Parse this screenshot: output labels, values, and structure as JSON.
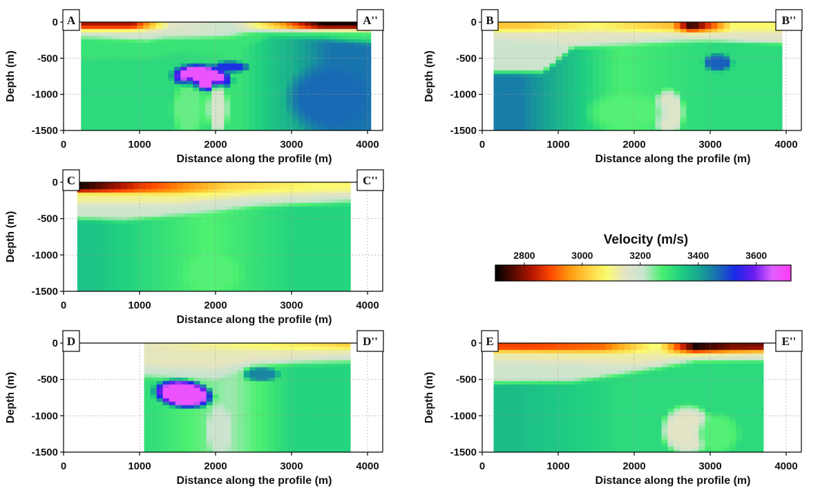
{
  "chart_data": {
    "type": "heatmap",
    "colorbar": {
      "title": "Velocity (m/s)",
      "range": [
        2700,
        3720
      ],
      "ticks": [
        2800,
        3000,
        3200,
        3400,
        3600
      ],
      "colors": [
        "#000000",
        "#5a0c00",
        "#b81800",
        "#ff4a00",
        "#ff9a10",
        "#ffd040",
        "#fbfb70",
        "#e4e4c4",
        "#c8e4d0",
        "#4cf070",
        "#20d080",
        "#18a890",
        "#1870b0",
        "#1c28e8",
        "#6a1cf0",
        "#e060ff",
        "#ff3cf8"
      ]
    },
    "panels": [
      {
        "id": "A",
        "start_label": "A",
        "end_label": "A''",
        "xlabel": "Distance along the profile (m)",
        "ylabel": "Depth (m)",
        "xlim": [
          0,
          4200
        ],
        "ylim": [
          -1500,
          0
        ],
        "xticks": [
          0,
          1000,
          2000,
          3000,
          4000
        ],
        "yticks": [
          0,
          -500,
          -1000,
          -1500
        ],
        "data_x_range": [
          230,
          4050
        ],
        "surface": [
          [
            0,
            0
          ],
          [
            4200,
            0
          ]
        ],
        "layers": [
          {
            "depth": [
              [
                0,
                -100
              ],
              [
                4200,
                -100
              ]
            ],
            "v": 2950,
            "vmod": [
              [
                900,
                2820
              ],
              [
                1400,
                3150
              ],
              [
                2200,
                3200
              ],
              [
                2900,
                2950
              ],
              [
                3400,
                2720
              ]
            ]
          },
          {
            "depth": [
              [
                0,
                -200
              ],
              [
                500,
                -220
              ],
              [
                1100,
                -250
              ],
              [
                1300,
                -220
              ],
              [
                2200,
                -200
              ],
              [
                2600,
                -120
              ],
              [
                3200,
                -130
              ],
              [
                4200,
                -180
              ]
            ],
            "v": 3140,
            "vmod": [
              [
                1700,
                3180
              ],
              [
                3400,
                3260
              ]
            ]
          },
          {
            "depth": [
              [
                0,
                -550
              ],
              [
                700,
                -500
              ],
              [
                1100,
                -530
              ],
              [
                1500,
                -420
              ],
              [
                2200,
                -450
              ],
              [
                2700,
                -200
              ],
              [
                3400,
                -230
              ],
              [
                4200,
                -300
              ]
            ],
            "v": 3220,
            "vmod": [
              [
                2800,
                3300
              ]
            ]
          },
          {
            "depth": [
              [
                0,
                -1500
              ],
              [
                4200,
                -1500
              ]
            ],
            "v": 3360,
            "vmod": [
              [
                1500,
                3320
              ],
              [
                2300,
                3300
              ],
              [
                3100,
                3400
              ],
              [
                3500,
                3460
              ]
            ]
          }
        ],
        "anomalies": [
          {
            "x": 1820,
            "depth": -770,
            "rx": 330,
            "ry": 170,
            "v": 3680,
            "angle": 18
          },
          {
            "x": 2200,
            "depth": -620,
            "rx": 220,
            "ry": 70,
            "v": 3520,
            "angle": -10
          },
          {
            "x": 3500,
            "depth": -1050,
            "rx": 500,
            "ry": 400,
            "v": 3470,
            "angle": 0
          },
          {
            "x": 1650,
            "depth": -1200,
            "rx": 200,
            "ry": 350,
            "v": 3260,
            "angle": 0
          },
          {
            "x": 2030,
            "depth": -1200,
            "rx": 120,
            "ry": 320,
            "v": 3180,
            "angle": 0
          }
        ]
      },
      {
        "id": "B",
        "start_label": "B",
        "end_label": "B''",
        "xlabel": "Distance along the profile (m)",
        "ylabel": "Depth (m)",
        "xlim": [
          0,
          4200
        ],
        "ylim": [
          -1500,
          0
        ],
        "xticks": [
          0,
          1000,
          2000,
          3000,
          4000
        ],
        "yticks": [
          0,
          -500,
          -1000,
          -1500
        ],
        "data_x_range": [
          150,
          3950
        ],
        "surface": [
          [
            0,
            0
          ],
          [
            4200,
            0
          ]
        ],
        "layers": [
          {
            "depth": [
              [
                0,
                -120
              ],
              [
                4200,
                -130
              ]
            ],
            "v": 3050,
            "vmod": [
              [
                600,
                3010
              ],
              [
                1500,
                3080
              ],
              [
                2500,
                3000
              ],
              [
                2750,
                2720
              ],
              [
                3300,
                3080
              ]
            ]
          },
          {
            "depth": [
              [
                0,
                -220
              ],
              [
                1200,
                -300
              ],
              [
                2500,
                -220
              ],
              [
                3000,
                -240
              ],
              [
                4200,
                -300
              ]
            ],
            "v": 3150,
            "vmod": []
          },
          {
            "depth": [
              [
                0,
                -700
              ],
              [
                800,
                -700
              ],
              [
                1200,
                -350
              ],
              [
                3000,
                -250
              ],
              [
                4200,
                -260
              ]
            ],
            "v": 3220,
            "vmod": [
              [
                600,
                3200
              ]
            ]
          },
          {
            "depth": [
              [
                0,
                -1500
              ],
              [
                4200,
                -1500
              ]
            ],
            "v": 3330,
            "vmod": [
              [
                500,
                3450
              ],
              [
                1800,
                3280
              ],
              [
                3000,
                3320
              ]
            ]
          }
        ],
        "anomalies": [
          {
            "x": 3100,
            "depth": -560,
            "rx": 170,
            "ry": 110,
            "v": 3480,
            "angle": 0
          },
          {
            "x": 2450,
            "depth": -1250,
            "rx": 180,
            "ry": 280,
            "v": 3160,
            "angle": 0
          },
          {
            "x": 1900,
            "depth": -1250,
            "rx": 450,
            "ry": 250,
            "v": 3270,
            "angle": 0
          }
        ]
      },
      {
        "id": "C",
        "start_label": "C",
        "end_label": "C''",
        "xlabel": "Distance along the profile (m)",
        "ylabel": "Depth (m)",
        "xlim": [
          0,
          4200
        ],
        "ylim": [
          -1500,
          0
        ],
        "xticks": [
          0,
          1000,
          2000,
          3000,
          4000
        ],
        "yticks": [
          0,
          -500,
          -1000,
          -1500
        ],
        "data_x_range": [
          180,
          3780
        ],
        "surface": [
          [
            0,
            0
          ],
          [
            4200,
            0
          ]
        ],
        "layers": [
          {
            "depth": [
              [
                0,
                -130
              ],
              [
                1500,
                -150
              ],
              [
                4200,
                -80
              ]
            ],
            "v": 2930,
            "vmod": [
              [
                250,
                2720
              ],
              [
                1000,
                2870
              ],
              [
                2200,
                3030
              ],
              [
                3300,
                3080
              ]
            ]
          },
          {
            "depth": [
              [
                0,
                -300
              ],
              [
                1500,
                -300
              ],
              [
                2500,
                -200
              ],
              [
                4200,
                -150
              ]
            ],
            "v": 3110,
            "vmod": []
          },
          {
            "depth": [
              [
                0,
                -500
              ],
              [
                800,
                -520
              ],
              [
                1500,
                -450
              ],
              [
                2500,
                -330
              ],
              [
                4200,
                -250
              ]
            ],
            "v": 3190,
            "vmod": []
          },
          {
            "depth": [
              [
                0,
                -1500
              ],
              [
                4200,
                -1500
              ]
            ],
            "v": 3320,
            "vmod": [
              [
                400,
                3360
              ],
              [
                1900,
                3270
              ],
              [
                3000,
                3330
              ]
            ]
          }
        ],
        "anomalies": [
          {
            "x": 1950,
            "depth": -1250,
            "rx": 350,
            "ry": 250,
            "v": 3270,
            "angle": 0
          }
        ]
      },
      {
        "id": "D",
        "start_label": "D",
        "end_label": "D''",
        "xlabel": "Distance along the profile (m)",
        "ylabel": "Depth (m)",
        "xlim": [
          0,
          4200
        ],
        "ylim": [
          -1500,
          0
        ],
        "xticks": [
          0,
          1000,
          2000,
          3000,
          4000
        ],
        "yticks": [
          0,
          -500,
          -1000,
          -1500
        ],
        "data_x_range": [
          1060,
          3780
        ],
        "surface": [
          [
            0,
            0
          ],
          [
            4200,
            0
          ]
        ],
        "layers": [
          {
            "depth": [
              [
                0,
                -100
              ],
              [
                4200,
                -80
              ]
            ],
            "v": 3130,
            "vmod": [
              [
                1200,
                3140
              ],
              [
                3300,
                3050
              ],
              [
                3700,
                3020
              ]
            ]
          },
          {
            "depth": [
              [
                0,
                -300
              ],
              [
                2000,
                -350
              ],
              [
                2500,
                -250
              ],
              [
                4200,
                -150
              ]
            ],
            "v": 3140,
            "vmod": []
          },
          {
            "depth": [
              [
                0,
                -420
              ],
              [
                2000,
                -500
              ],
              [
                2500,
                -300
              ],
              [
                4200,
                -250
              ]
            ],
            "v": 3200,
            "vmod": []
          },
          {
            "depth": [
              [
                0,
                -1500
              ],
              [
                4200,
                -1500
              ]
            ],
            "v": 3320,
            "vmod": [
              [
                1200,
                3310
              ],
              [
                2200,
                3230
              ],
              [
                3000,
                3330
              ]
            ]
          }
        ],
        "anomalies": [
          {
            "x": 1580,
            "depth": -700,
            "rx": 330,
            "ry": 180,
            "v": 3680,
            "angle": 16
          },
          {
            "x": 2600,
            "depth": -430,
            "rx": 220,
            "ry": 90,
            "v": 3440,
            "angle": 0
          },
          {
            "x": 2050,
            "depth": -1200,
            "rx": 150,
            "ry": 320,
            "v": 3200,
            "angle": 0
          }
        ]
      },
      {
        "id": "E",
        "start_label": "E",
        "end_label": "E''",
        "xlabel": "Distance along the profile (m)",
        "ylabel": "Depth (m)",
        "xlim": [
          0,
          4200
        ],
        "ylim": [
          -1500,
          0
        ],
        "xticks": [
          0,
          1000,
          2000,
          3000,
          4000
        ],
        "yticks": [
          0,
          -500,
          -1000,
          -1500
        ],
        "data_x_range": [
          150,
          3700
        ],
        "surface": [
          [
            0,
            0
          ],
          [
            4200,
            0
          ]
        ],
        "layers": [
          {
            "depth": [
              [
                0,
                -110
              ],
              [
                2500,
                -130
              ],
              [
                4200,
                -100
              ]
            ],
            "v": 2950,
            "vmod": [
              [
                600,
                2880
              ],
              [
                1600,
                2920
              ],
              [
                2300,
                3100
              ],
              [
                2800,
                2720
              ],
              [
                3300,
                2780
              ]
            ]
          },
          {
            "depth": [
              [
                0,
                -250
              ],
              [
                2000,
                -300
              ],
              [
                2800,
                -200
              ],
              [
                4200,
                -200
              ]
            ],
            "v": 3130,
            "vmod": []
          },
          {
            "depth": [
              [
                0,
                -550
              ],
              [
                1200,
                -530
              ],
              [
                2000,
                -400
              ],
              [
                2800,
                -250
              ],
              [
                4200,
                -230
              ]
            ],
            "v": 3190,
            "vmod": []
          },
          {
            "depth": [
              [
                0,
                -1500
              ],
              [
                4200,
                -1500
              ]
            ],
            "v": 3340,
            "vmod": [
              [
                400,
                3370
              ],
              [
                1800,
                3320
              ],
              [
                3000,
                3320
              ]
            ]
          }
        ],
        "anomalies": [
          {
            "x": 2700,
            "depth": -1200,
            "rx": 300,
            "ry": 300,
            "v": 3150,
            "angle": 0
          },
          {
            "x": 3100,
            "depth": -1250,
            "rx": 250,
            "ry": 250,
            "v": 3270,
            "angle": 0
          }
        ]
      }
    ]
  }
}
